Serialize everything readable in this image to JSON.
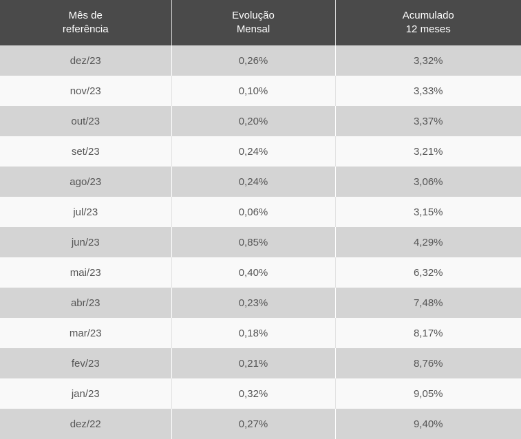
{
  "table": {
    "headers": [
      [
        "Mês de",
        "referência"
      ],
      [
        "Evolução",
        "Mensal"
      ],
      [
        "Acumulado",
        "12 meses"
      ]
    ],
    "rows": [
      [
        "dez/23",
        "0,26%",
        "3,32%"
      ],
      [
        "nov/23",
        "0,10%",
        "3,33%"
      ],
      [
        "out/23",
        "0,20%",
        "3,37%"
      ],
      [
        "set/23",
        "0,24%",
        "3,21%"
      ],
      [
        "ago/23",
        "0,24%",
        "3,06%"
      ],
      [
        "jul/23",
        "0,06%",
        "3,15%"
      ],
      [
        "jun/23",
        "0,85%",
        "4,29%"
      ],
      [
        "mai/23",
        "0,40%",
        "6,32%"
      ],
      [
        "abr/23",
        "0,23%",
        "7,48%"
      ],
      [
        "mar/23",
        "0,18%",
        "8,17%"
      ],
      [
        "fev/23",
        "0,21%",
        "8,76%"
      ],
      [
        "jan/23",
        "0,32%",
        "9,05%"
      ],
      [
        "dez/22",
        "0,27%",
        "9,40%"
      ]
    ]
  },
  "colors": {
    "header_bg": "#4a4a4a",
    "header_text": "#ffffff",
    "row_odd_bg": "#d4d4d4",
    "row_even_bg": "#f9f9f9",
    "cell_text": "#555555"
  }
}
